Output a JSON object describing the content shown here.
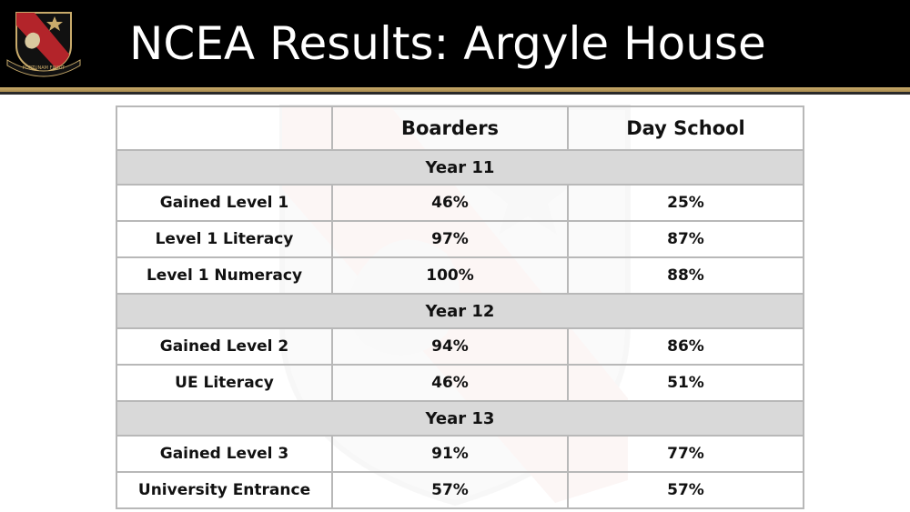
{
  "header": {
    "title": "NCEA Results: Argyle House",
    "logo_motto": "FORTUNAM FINGIT"
  },
  "colors": {
    "header_bg": "#000000",
    "gold_stripe": "#c9ab6b",
    "year_row_bg": "#d9d9d9",
    "border": "#b8b8b8"
  },
  "table": {
    "columns": [
      "",
      "Boarders",
      "Day School"
    ],
    "sections": [
      {
        "year": "Year 11",
        "rows": [
          {
            "label": "Gained Level 1",
            "boarders": "46%",
            "day_school": "25%"
          },
          {
            "label": "Level 1 Literacy",
            "boarders": "97%",
            "day_school": "87%"
          },
          {
            "label": "Level 1 Numeracy",
            "boarders": "100%",
            "day_school": "88%"
          }
        ]
      },
      {
        "year": "Year 12",
        "rows": [
          {
            "label": "Gained Level 2",
            "boarders": "94%",
            "day_school": "86%"
          },
          {
            "label": "UE Literacy",
            "boarders": "46%",
            "day_school": "51%"
          }
        ]
      },
      {
        "year": "Year 13",
        "rows": [
          {
            "label": "Gained Level 3",
            "boarders": "91%",
            "day_school": "77%"
          },
          {
            "label": "University Entrance",
            "boarders": "57%",
            "day_school": "57%"
          }
        ]
      }
    ]
  }
}
